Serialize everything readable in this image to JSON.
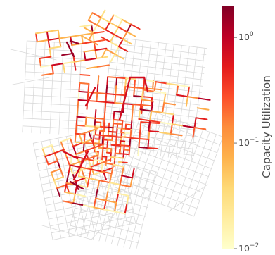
{
  "chart_data": {
    "type": "heatmap",
    "title": "",
    "colorbar": {
      "label": "Capacity Utilization",
      "scale": "log",
      "range": [
        0.01,
        2.0
      ],
      "ticks": [
        {
          "value": 1.0,
          "label_base": "10",
          "label_exp": "0"
        },
        {
          "value": 0.1,
          "label_base": "10",
          "label_exp": "−1"
        },
        {
          "value": 0.01,
          "label_base": "10",
          "label_exp": "−2"
        }
      ],
      "colormap": "YlOrRd",
      "colormap_stops": [
        "#ffffcc",
        "#ffeda0",
        "#fed976",
        "#feb24c",
        "#fd8d3c",
        "#fc4e2a",
        "#e31a1c",
        "#bd0026",
        "#800026"
      ]
    },
    "base_network_color": "#d9d9d9",
    "segments": [
      {
        "id": 1,
        "util": 0.012
      },
      {
        "id": 2,
        "util": 0.015
      },
      {
        "id": 3,
        "util": 0.02
      },
      {
        "id": 4,
        "util": 0.035
      },
      {
        "id": 5,
        "util": 0.06
      },
      {
        "id": 6,
        "util": 0.09
      },
      {
        "id": 7,
        "util": 0.15
      },
      {
        "id": 8,
        "util": 0.3
      },
      {
        "id": 9,
        "util": 0.6
      },
      {
        "id": 10,
        "util": 1.1
      },
      {
        "id": 11,
        "util": 1.5
      },
      {
        "id": 12,
        "util": 0.025
      },
      {
        "id": 13,
        "util": 0.045
      },
      {
        "id": 14,
        "util": 0.07
      },
      {
        "id": 15,
        "util": 0.11
      },
      {
        "id": 16,
        "util": 0.2
      },
      {
        "id": 17,
        "util": 0.4
      },
      {
        "id": 18,
        "util": 0.8
      },
      {
        "id": 19,
        "util": 0.018
      },
      {
        "id": 20,
        "util": 0.05
      },
      {
        "id": 21,
        "util": 0.08
      },
      {
        "id": 22,
        "util": 0.13
      },
      {
        "id": 23,
        "util": 0.25
      },
      {
        "id": 24,
        "util": 0.5
      },
      {
        "id": 25,
        "util": 0.03
      },
      {
        "id": 26,
        "util": 0.1
      },
      {
        "id": 27,
        "util": 0.18
      },
      {
        "id": 28,
        "util": 0.35
      },
      {
        "id": 29,
        "util": 0.7
      },
      {
        "id": 30,
        "util": 0.04
      }
    ]
  }
}
